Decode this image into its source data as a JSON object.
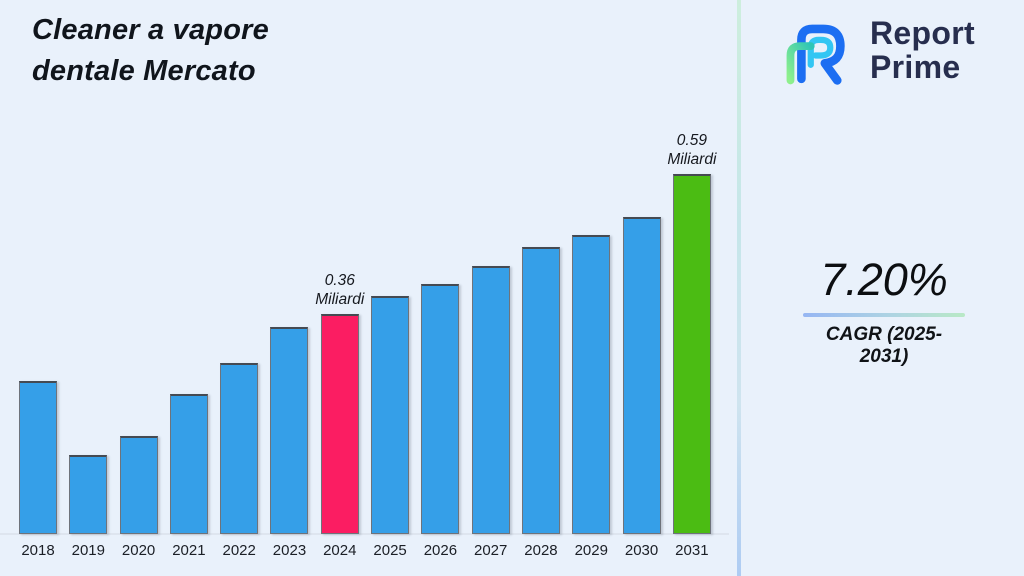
{
  "header": {
    "title_lines": [
      "Cleaner a vapore",
      "dentale Mercato"
    ]
  },
  "logo": {
    "line1": "Report",
    "line2": "Prime"
  },
  "cagr": {
    "value": "7.20%",
    "label": "CAGR (2025-2031)"
  },
  "chart_data": {
    "type": "bar",
    "title": "Cleaner a vapore dentale Mercato",
    "unit": "Miliardi",
    "categories": [
      "2018",
      "2019",
      "2020",
      "2021",
      "2022",
      "2023",
      "2024",
      "2025",
      "2026",
      "2027",
      "2028",
      "2029",
      "2030",
      "2031"
    ],
    "values": [
      0.25,
      0.13,
      0.16,
      0.23,
      0.28,
      0.34,
      0.36,
      0.39,
      0.41,
      0.44,
      0.47,
      0.49,
      0.52,
      0.59
    ],
    "ylim": [
      0,
      0.62
    ],
    "grid": false,
    "legend_position": "none",
    "bar_color_default": "#359fe8",
    "highlighted_bars": [
      {
        "category": "2024",
        "color": "#fb1d62",
        "annotation_lines": [
          "0.36",
          "Miliardi"
        ]
      },
      {
        "category": "2031",
        "color": "#4bbc13",
        "annotation_lines": [
          "0.59",
          "Miliardi"
        ]
      }
    ]
  },
  "colors": {
    "background": "#e9f1fb",
    "bar_blue": "#359fe8",
    "bar_pink": "#fb1d62",
    "bar_green": "#4bbc13",
    "logo_navy": "#272e4e",
    "underline_gradient_start": "#96b6f3",
    "underline_gradient_end": "#b9e9c6",
    "divider_top": "#cdeedd",
    "divider_bottom": "#aeccf3"
  }
}
